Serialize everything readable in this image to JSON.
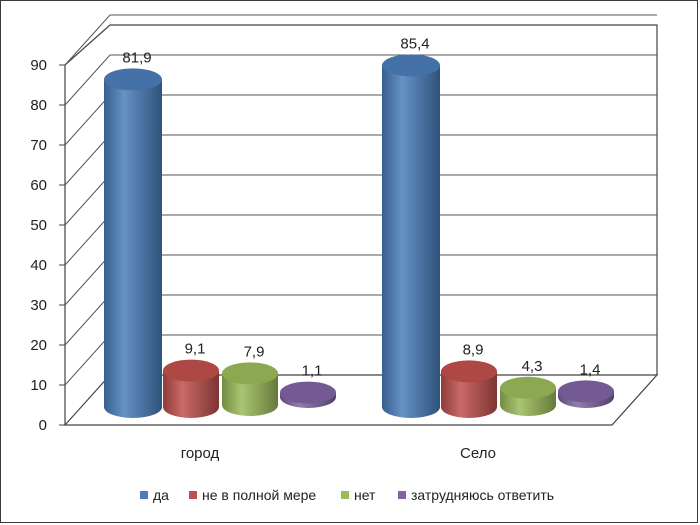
{
  "chart_data": {
    "type": "bar",
    "style": "3d-cylinder",
    "categories": [
      "город",
      "Село"
    ],
    "series": [
      {
        "name": "да",
        "values": [
          81.9,
          85.4
        ],
        "labels": [
          "81,9",
          "85,4"
        ],
        "color": "#4a7ebb"
      },
      {
        "name": "не в полной мере",
        "values": [
          9.1,
          8.9
        ],
        "labels": [
          "9,1",
          "8,9"
        ],
        "color": "#c0504d"
      },
      {
        "name": "нет",
        "values": [
          7.9,
          4.3
        ],
        "labels": [
          "7,9",
          "4,3"
        ],
        "color": "#9bbb59"
      },
      {
        "name": "затрудняюсь ответить",
        "values": [
          1.1,
          1.4
        ],
        "labels": [
          "1,1",
          "1,4"
        ],
        "color": "#8064a2"
      }
    ],
    "ylim": [
      0,
      90
    ],
    "yticks": [
      0,
      10,
      20,
      30,
      40,
      50,
      60,
      70,
      80,
      90
    ],
    "grid": true,
    "legend_position": "bottom"
  }
}
